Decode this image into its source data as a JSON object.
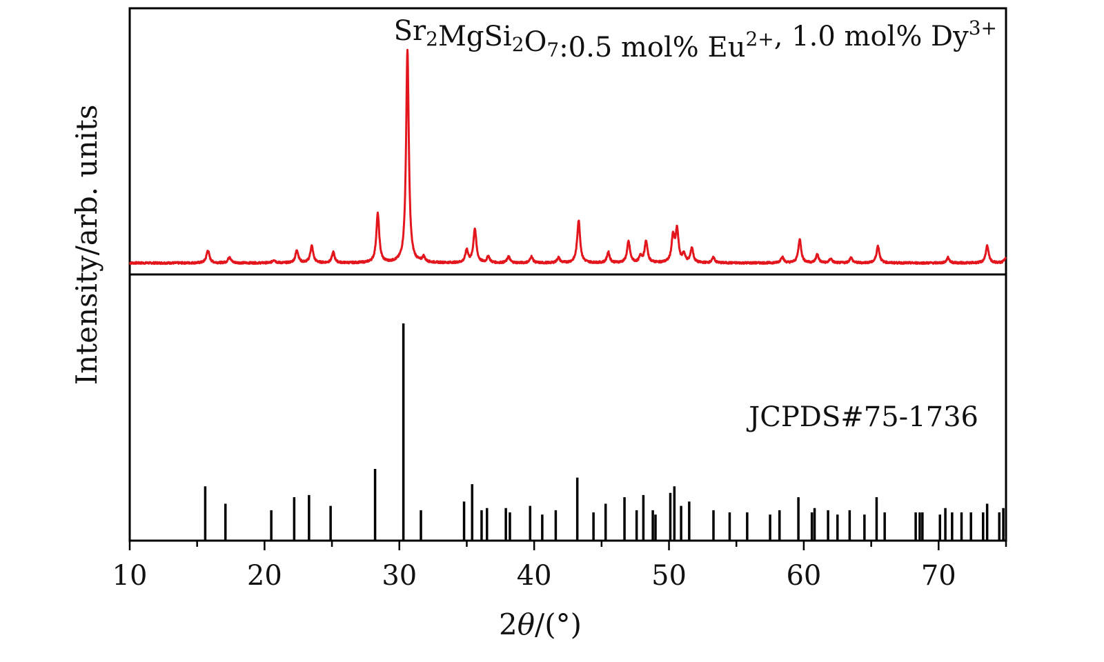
{
  "chart_data": {
    "type": "line",
    "x_label_parts": [
      "2",
      "θ",
      "/(°)"
    ],
    "y_label": "Intensity/arb. units",
    "xlim": [
      10,
      75
    ],
    "x_ticks": [
      10,
      20,
      30,
      40,
      50,
      60,
      70
    ],
    "legend": "none",
    "grid": false,
    "series": [
      {
        "panel": "top",
        "label_parts": [
          {
            "t": "Sr"
          },
          {
            "t": "2",
            "sub": true
          },
          {
            "t": "MgSi"
          },
          {
            "t": "2",
            "sub": true
          },
          {
            "t": "O"
          },
          {
            "t": "7",
            "sub": true
          },
          {
            "t": ":0.5 mol% Eu"
          },
          {
            "t": "2+",
            "sup": true
          },
          {
            "t": ", 1.0 mol% Dy"
          },
          {
            "t": "3+",
            "sup": true
          }
        ],
        "color": "#e3161d",
        "baseline": 1.5,
        "peaks": [
          {
            "x": 15.8,
            "h": 6,
            "w": 0.13
          },
          {
            "x": 17.4,
            "h": 3,
            "w": 0.12
          },
          {
            "x": 20.7,
            "h": 1.5,
            "w": 0.12
          },
          {
            "x": 22.4,
            "h": 6,
            "w": 0.13
          },
          {
            "x": 23.5,
            "h": 8,
            "w": 0.13
          },
          {
            "x": 25.1,
            "h": 5,
            "w": 0.12
          },
          {
            "x": 28.4,
            "h": 23,
            "w": 0.13
          },
          {
            "x": 30.6,
            "h": 100,
            "w": 0.12
          },
          {
            "x": 31.8,
            "h": 2.5,
            "w": 0.12
          },
          {
            "x": 35.0,
            "h": 6,
            "w": 0.12
          },
          {
            "x": 35.6,
            "h": 16,
            "w": 0.13
          },
          {
            "x": 36.6,
            "h": 3,
            "w": 0.12
          },
          {
            "x": 38.1,
            "h": 3,
            "w": 0.12
          },
          {
            "x": 39.8,
            "h": 3,
            "w": 0.12
          },
          {
            "x": 41.8,
            "h": 2.5,
            "w": 0.12
          },
          {
            "x": 43.3,
            "h": 20,
            "w": 0.13
          },
          {
            "x": 45.5,
            "h": 5,
            "w": 0.12
          },
          {
            "x": 47.0,
            "h": 10,
            "w": 0.13
          },
          {
            "x": 47.9,
            "h": 3,
            "w": 0.12
          },
          {
            "x": 48.3,
            "h": 10,
            "w": 0.13
          },
          {
            "x": 50.3,
            "h": 12,
            "w": 0.13
          },
          {
            "x": 50.6,
            "h": 15,
            "w": 0.13
          },
          {
            "x": 51.1,
            "h": 4,
            "w": 0.12
          },
          {
            "x": 51.7,
            "h": 7,
            "w": 0.12
          },
          {
            "x": 53.3,
            "h": 2.5,
            "w": 0.12
          },
          {
            "x": 58.4,
            "h": 3,
            "w": 0.12
          },
          {
            "x": 59.7,
            "h": 11,
            "w": 0.13
          },
          {
            "x": 61.0,
            "h": 4,
            "w": 0.12
          },
          {
            "x": 62.0,
            "h": 2,
            "w": 0.12
          },
          {
            "x": 63.5,
            "h": 2.5,
            "w": 0.12
          },
          {
            "x": 65.5,
            "h": 8,
            "w": 0.13
          },
          {
            "x": 70.7,
            "h": 2.5,
            "w": 0.12
          },
          {
            "x": 73.6,
            "h": 8,
            "w": 0.13
          },
          {
            "x": 75.0,
            "h": 3,
            "w": 0.12
          }
        ]
      },
      {
        "panel": "bottom",
        "type": "stick",
        "label": "JCPDS#75-1736",
        "color": "#000000",
        "x": [
          15.6,
          17.1,
          20.5,
          22.2,
          23.3,
          24.9,
          28.2,
          30.3,
          31.6,
          34.8,
          35.4,
          36.1,
          36.5,
          37.9,
          38.2,
          39.7,
          40.6,
          41.6,
          43.2,
          44.4,
          45.3,
          46.7,
          47.6,
          48.1,
          48.8,
          49.0,
          50.1,
          50.4,
          50.9,
          51.5,
          53.3,
          54.5,
          55.8,
          57.5,
          58.2,
          59.6,
          60.6,
          60.8,
          61.8,
          62.5,
          63.4,
          64.5,
          65.4,
          66.0,
          68.3,
          68.6,
          68.8,
          70.1,
          70.5,
          71.0,
          71.7,
          72.4,
          73.3,
          73.6,
          74.5,
          74.8
        ],
        "intensity": [
          25,
          17,
          14,
          20,
          21,
          16,
          33,
          100,
          14,
          18,
          26,
          14,
          15,
          15,
          13,
          16,
          12,
          14,
          29,
          13,
          17,
          20,
          14,
          21,
          14,
          12,
          22,
          25,
          16,
          18,
          14,
          13,
          13,
          12,
          14,
          20,
          13,
          15,
          14,
          12,
          14,
          12,
          20,
          13,
          13,
          13,
          13,
          12,
          15,
          13,
          13,
          13,
          13,
          17,
          13,
          15
        ]
      }
    ]
  }
}
